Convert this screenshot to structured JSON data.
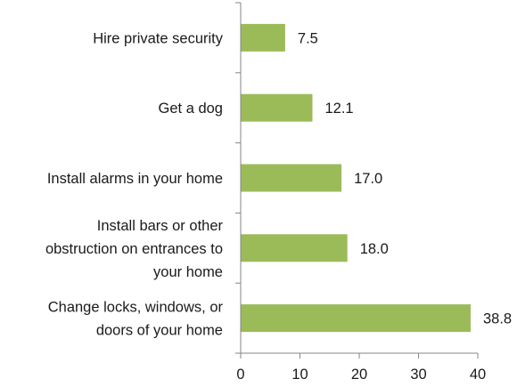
{
  "chart_data": {
    "type": "bar",
    "orientation": "horizontal",
    "categories": [
      [
        "Hire private security"
      ],
      [
        "Get a dog"
      ],
      [
        "Install alarms in your home"
      ],
      [
        "Install bars or other",
        "obstruction on entrances to",
        "your home"
      ],
      [
        "Change locks, windows, or",
        "doors of your home"
      ]
    ],
    "values": [
      7.5,
      12.1,
      17.0,
      18.0,
      38.8
    ],
    "value_labels": [
      "7.5",
      "12.1",
      "17.0",
      "18.0",
      "38.8"
    ],
    "xlim": [
      0,
      40
    ],
    "xticks": [
      "0",
      "10",
      "20",
      "30",
      "40"
    ],
    "bar_color": "#9bbb59",
    "axis_color": "#868686",
    "grid": false,
    "legend": "none"
  }
}
